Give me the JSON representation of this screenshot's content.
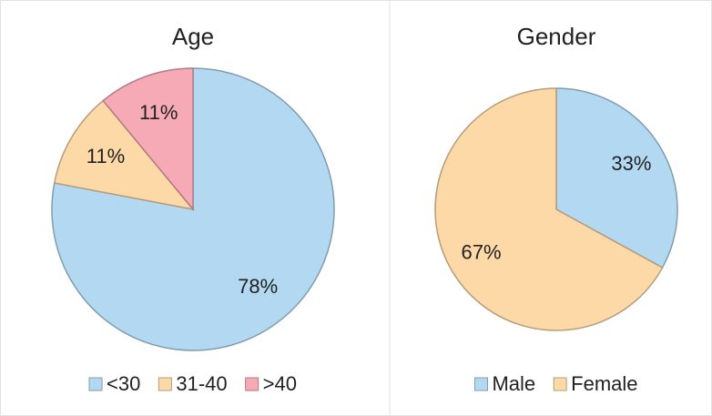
{
  "chart_data": [
    {
      "type": "pie",
      "title": "Age",
      "categories": [
        "<30",
        "31-40",
        ">40"
      ],
      "values": [
        78,
        11,
        11
      ],
      "value_labels": [
        "78%",
        "11%",
        "11%"
      ],
      "colors": [
        "#b3d9f2",
        "#fdd9a8",
        "#f5aab5"
      ],
      "legend": "bottom"
    },
    {
      "type": "pie",
      "title": "Gender",
      "categories": [
        "Male",
        "Female"
      ],
      "values": [
        33,
        67
      ],
      "value_labels": [
        "33%",
        "67%"
      ],
      "colors": [
        "#b3d9f2",
        "#fdd9a8"
      ],
      "legend": "bottom"
    }
  ]
}
